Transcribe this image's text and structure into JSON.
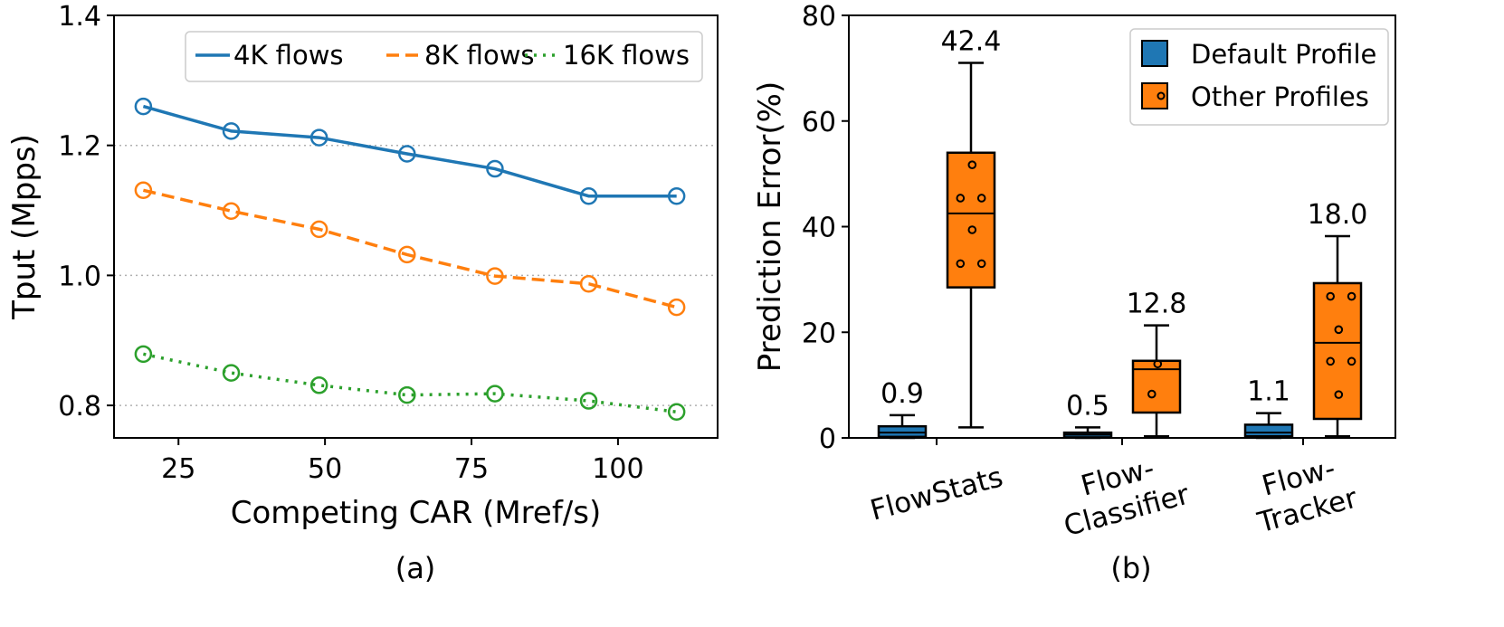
{
  "colors": {
    "blue": "#1f77b4",
    "orange": "#ff7f0e",
    "green": "#2ca02c",
    "grid": "#b0b0b0"
  },
  "chart_data": [
    {
      "type": "line",
      "caption": "(a)",
      "xlabel": "Competing CAR (Mref/s)",
      "ylabel": "Tput (Mpps)",
      "xlim": [
        14,
        117
      ],
      "ylim": [
        0.75,
        1.4
      ],
      "xticks": [
        "25",
        "50",
        "75",
        "100"
      ],
      "xtick_values": [
        25,
        50,
        75,
        100
      ],
      "yticks": [
        "0.8",
        "1.0",
        "1.2",
        "1.4"
      ],
      "ytick_values": [
        0.8,
        1.0,
        1.2,
        1.4
      ],
      "grid": "horizontal dotted",
      "legend": "top-right, 3 columns",
      "x": [
        19,
        34,
        49,
        64,
        79,
        95,
        110
      ],
      "series": [
        {
          "name": "4K flows",
          "style": "solid",
          "color": "#1f77b4",
          "values": [
            1.26,
            1.222,
            1.212,
            1.187,
            1.164,
            1.122,
            1.122
          ]
        },
        {
          "name": "8K flows",
          "style": "dashed",
          "color": "#ff7f0e",
          "values": [
            1.131,
            1.099,
            1.071,
            1.032,
            0.999,
            0.987,
            0.951
          ]
        },
        {
          "name": "16K flows",
          "style": "dotted",
          "color": "#2ca02c",
          "values": [
            0.879,
            0.85,
            0.831,
            0.816,
            0.818,
            0.807,
            0.79
          ]
        }
      ]
    },
    {
      "type": "box",
      "caption": "(b)",
      "xlabel": "",
      "ylabel": "Prediction Error(%)",
      "ylim": [
        0,
        80
      ],
      "yticks": [
        "0",
        "20",
        "40",
        "60",
        "80"
      ],
      "ytick_values": [
        0,
        20,
        40,
        60,
        80
      ],
      "legend": "top-right",
      "categories": [
        "FlowStats",
        "Flow-\nClassifier",
        "Flow-\nTracker"
      ],
      "category_lines": [
        [
          "FlowStats"
        ],
        [
          "Flow-",
          "Classifier"
        ],
        [
          "Flow-",
          "Tracker"
        ]
      ],
      "series": [
        {
          "name": "Default Profile",
          "color": "#1f77b4",
          "boxes": [
            {
              "label": "0.9",
              "whislo": 0,
              "q1": 0.2,
              "med": 1.0,
              "q3": 2.2,
              "whishi": 4.3,
              "points": []
            },
            {
              "label": "0.5",
              "whislo": 0,
              "q1": 0.1,
              "med": 0.6,
              "q3": 1.0,
              "whishi": 2.0,
              "points": []
            },
            {
              "label": "1.1",
              "whislo": 0,
              "q1": 0.3,
              "med": 1.0,
              "q3": 2.5,
              "whishi": 4.7,
              "points": []
            }
          ]
        },
        {
          "name": "Other Profiles",
          "color": "#ff7f0e",
          "boxes": [
            {
              "label": "42.4",
              "whislo": 2,
              "q1": 28.5,
              "med": 42.5,
              "q3": 54,
              "whishi": 71,
              "points": [
                [
                  0.05,
                  51.7
                ],
                [
                  -0.45,
                  45.4
                ],
                [
                  0.45,
                  45.4
                ],
                [
                  0.05,
                  39.4
                ],
                [
                  -0.45,
                  33.0
                ],
                [
                  0.45,
                  33.0
                ]
              ]
            },
            {
              "label": "12.8",
              "whislo": 0.3,
              "q1": 4.8,
              "med": 13.0,
              "q3": 14.6,
              "whishi": 21.3,
              "points": [
                [
                  0.05,
                  14.0
                ],
                [
                  -0.2,
                  8.3
                ]
              ]
            },
            {
              "label": "18.0",
              "whislo": 0.3,
              "q1": 3.6,
              "med": 18.0,
              "q3": 29.3,
              "whishi": 38.2,
              "points": [
                [
                  -0.3,
                  26.8
                ],
                [
                  0.6,
                  26.8
                ],
                [
                  0.05,
                  20.5
                ],
                [
                  0.6,
                  14.5
                ],
                [
                  -0.3,
                  14.5
                ],
                [
                  0.05,
                  8.2
                ]
              ]
            }
          ]
        }
      ]
    }
  ]
}
